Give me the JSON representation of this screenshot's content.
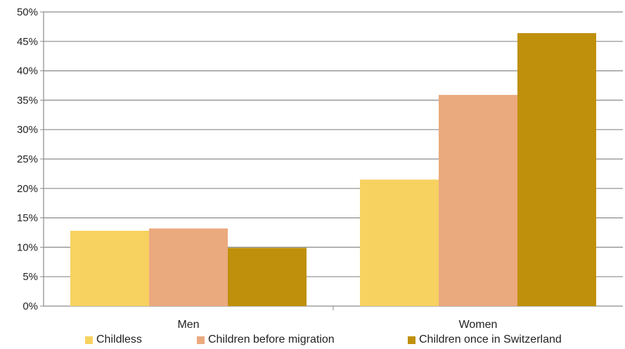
{
  "chart_data": {
    "type": "bar",
    "categories": [
      "Men",
      "Women"
    ],
    "series": [
      {
        "name": "Childless",
        "values": [
          12.8,
          21.5
        ],
        "color": "#f7d260"
      },
      {
        "name": "Children before migration",
        "values": [
          13.2,
          35.9
        ],
        "color": "#eba97e"
      },
      {
        "name": "Children once in Switzerland",
        "values": [
          9.9,
          46.4
        ],
        "color": "#bf900b"
      }
    ],
    "y_ticks": [
      "0%",
      "5%",
      "10%",
      "15%",
      "20%",
      "25%",
      "30%",
      "35%",
      "40%",
      "45%",
      "50%"
    ],
    "ylim": [
      0,
      50
    ],
    "grid": true,
    "legend_position": "bottom",
    "title": "",
    "xlabel": "",
    "ylabel": ""
  }
}
